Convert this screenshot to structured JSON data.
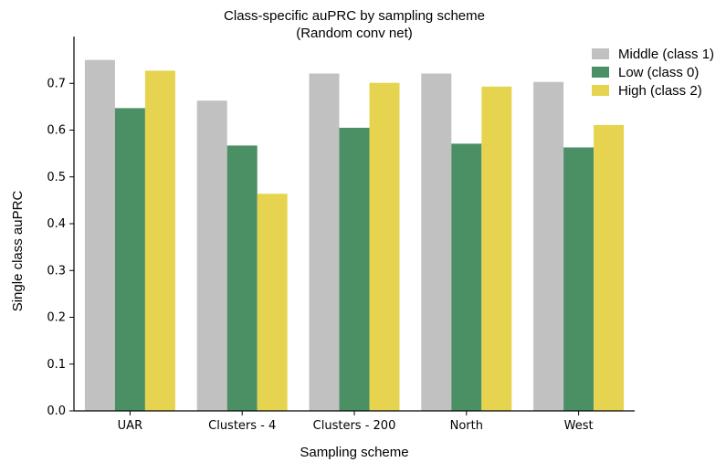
{
  "chart_data": {
    "type": "bar",
    "title": "Class-specific auPRC by sampling scheme",
    "subtitle": "(Random conv net)",
    "xlabel": "Sampling scheme",
    "ylabel": "Single class auPRC",
    "categories": [
      "UAR",
      "Clusters - 4",
      "Clusters - 200",
      "North",
      "West"
    ],
    "series": [
      {
        "name": "Middle (class 1)",
        "color": "#c0c1c0",
        "values": [
          0.75,
          0.663,
          0.721,
          0.721,
          0.703
        ]
      },
      {
        "name": "Low (class 0)",
        "color": "#4b8f64",
        "values": [
          0.647,
          0.567,
          0.605,
          0.571,
          0.563
        ]
      },
      {
        "name": "High (class 2)",
        "color": "#e6d450",
        "values": [
          0.727,
          0.464,
          0.701,
          0.693,
          0.611
        ]
      }
    ],
    "ylim": [
      0.0,
      0.8
    ],
    "yticks": [
      "0.0",
      "0.1",
      "0.2",
      "0.3",
      "0.4",
      "0.5",
      "0.6",
      "0.7"
    ],
    "grid": false,
    "legend_position": "top-right"
  }
}
